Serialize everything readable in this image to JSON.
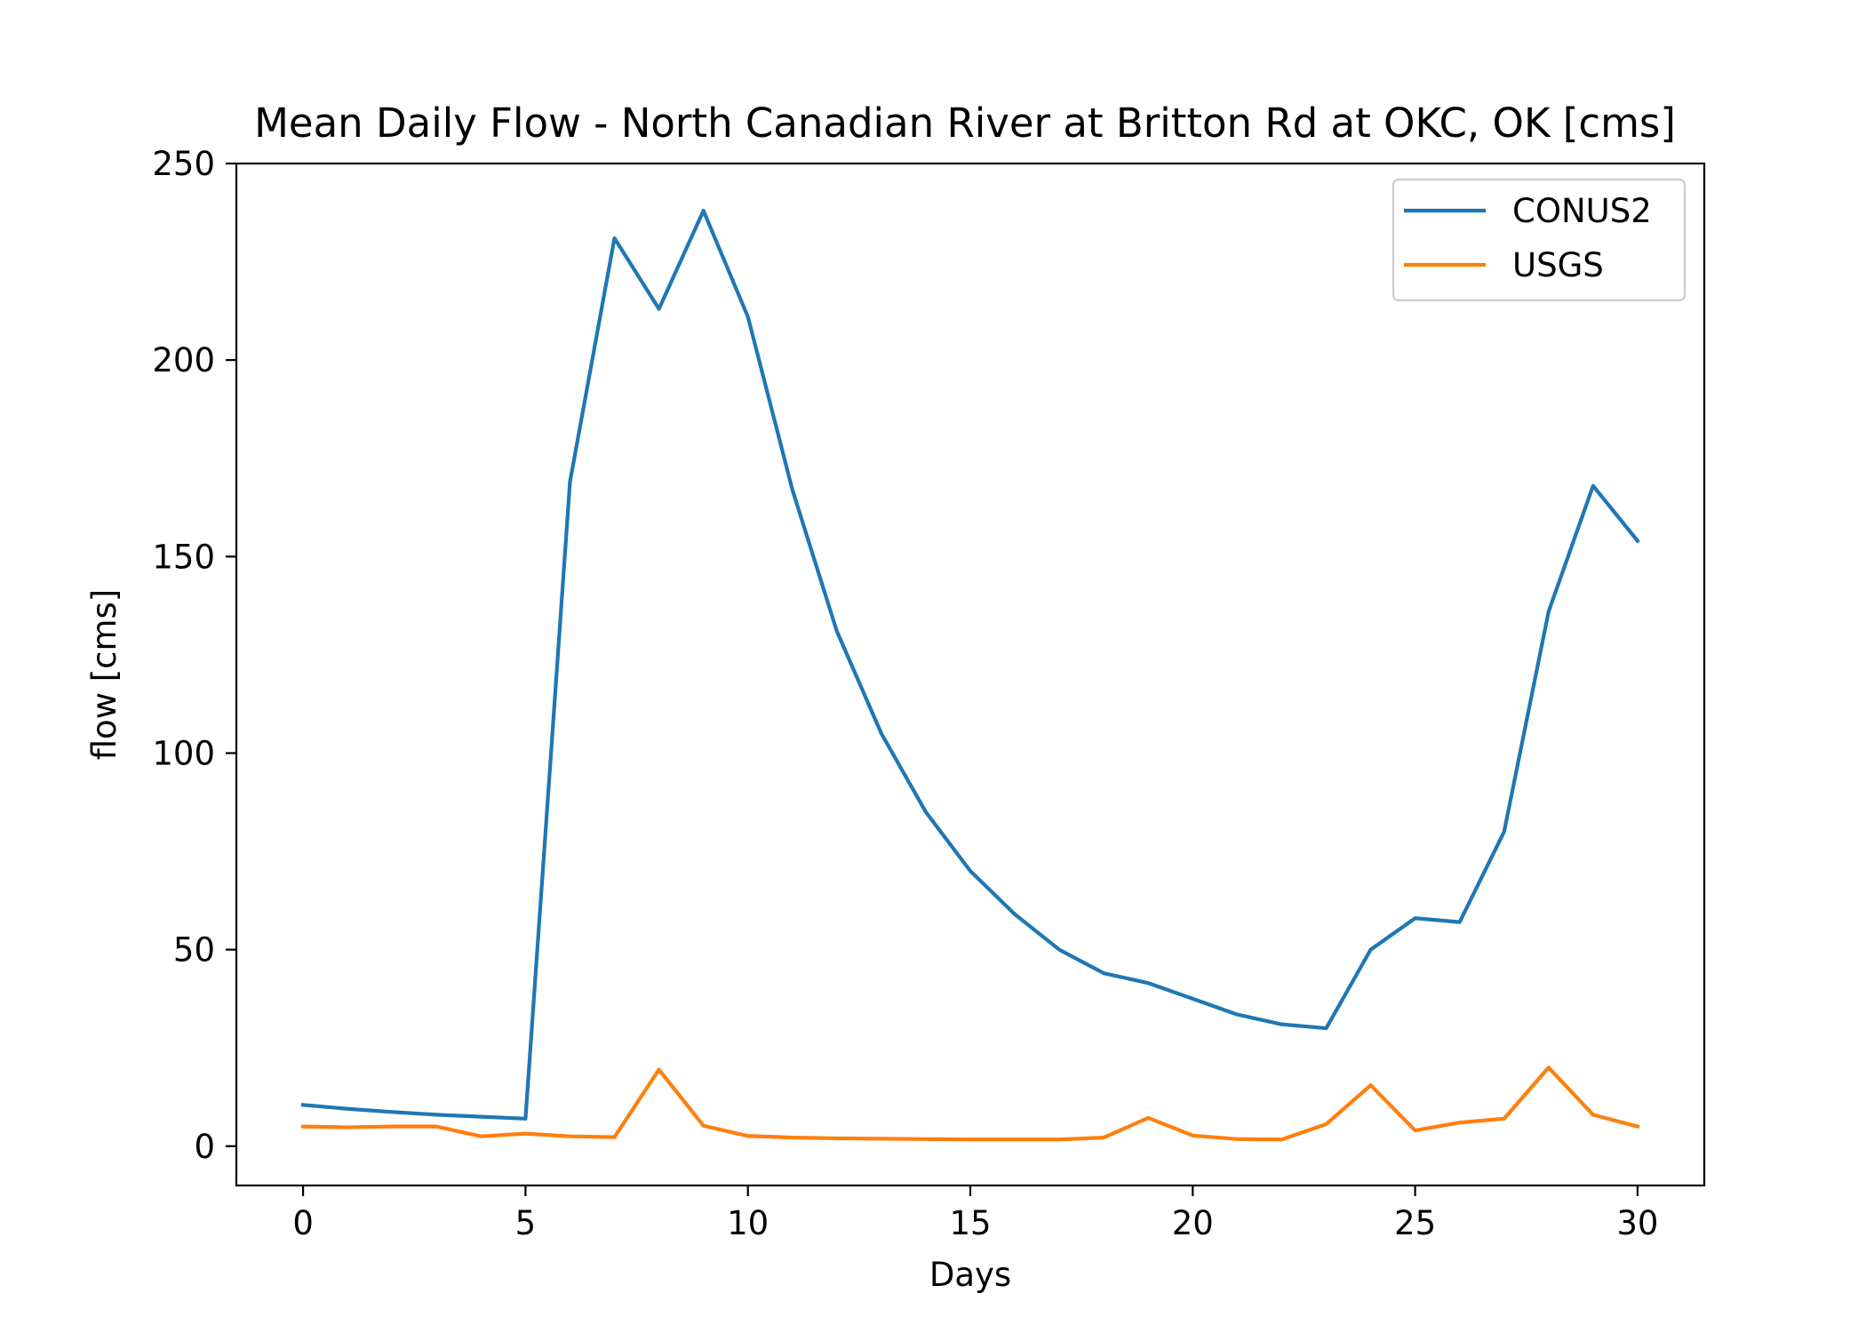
{
  "chart_data": {
    "type": "line",
    "title": "Mean Daily Flow - North Canadian River at Britton Rd at OKC, OK [cms]",
    "xlabel": "Days",
    "ylabel": "flow [cms]",
    "xlim": [
      -1.5,
      31.5
    ],
    "ylim": [
      -10,
      250
    ],
    "xticks": [
      0,
      5,
      10,
      15,
      20,
      25,
      30
    ],
    "yticks": [
      0,
      50,
      100,
      150,
      200,
      250
    ],
    "grid": false,
    "legend_position": "top-right",
    "x": [
      0,
      1,
      2,
      3,
      4,
      5,
      6,
      7,
      8,
      9,
      10,
      11,
      12,
      13,
      14,
      15,
      16,
      17,
      18,
      19,
      20,
      21,
      22,
      23,
      24,
      25,
      26,
      27,
      28,
      29,
      30
    ],
    "series": [
      {
        "name": "CONUS2",
        "color": "#1f77b4",
        "values": [
          10.5,
          9.5,
          8.7,
          8.0,
          7.5,
          7.0,
          169,
          231,
          213,
          238,
          211,
          167,
          131,
          105,
          85,
          70,
          59,
          50,
          44,
          41.5,
          37.5,
          33.5,
          31,
          30,
          50,
          58,
          57,
          80,
          136,
          168,
          154
        ]
      },
      {
        "name": "USGS",
        "color": "#ff7f0e",
        "values": [
          5,
          4.8,
          5,
          5,
          2.5,
          3.2,
          2.5,
          2.3,
          19.5,
          5.2,
          2.6,
          2.2,
          2.0,
          1.9,
          1.8,
          1.7,
          1.7,
          1.7,
          2.2,
          7.2,
          2.7,
          1.8,
          1.7,
          5.6,
          15.5,
          4,
          6,
          7,
          20,
          8,
          5
        ]
      }
    ]
  }
}
